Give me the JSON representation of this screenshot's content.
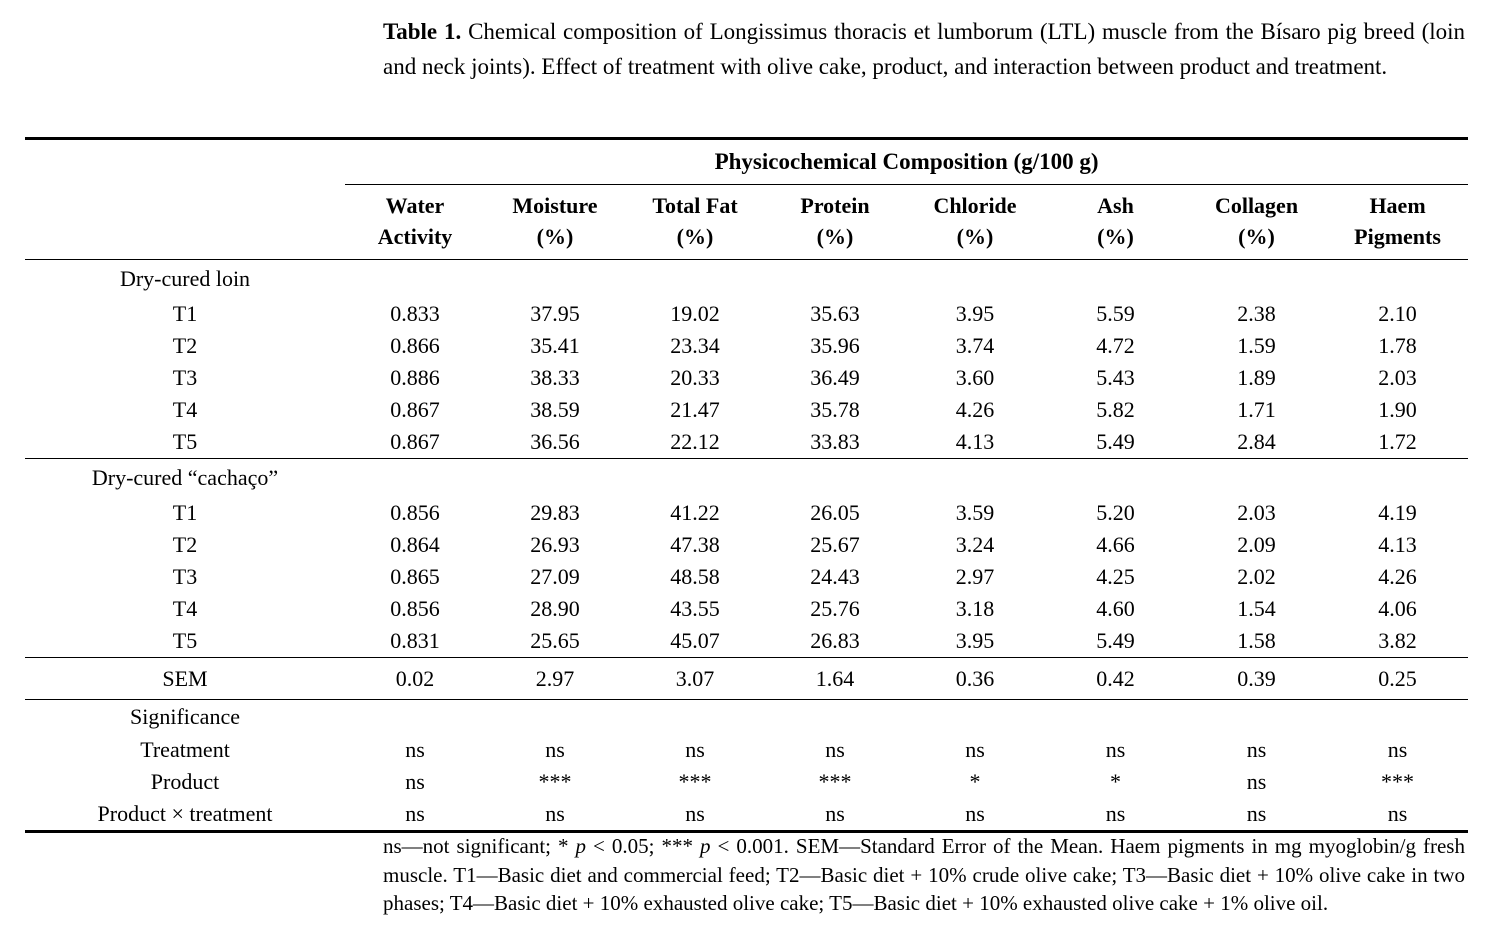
{
  "caption": {
    "label": "Table 1.",
    "text": "Chemical composition of Longissimus thoracis et lumborum (LTL) muscle from the Bísaro pig breed (loin and neck joints). Effect of treatment with olive cake, product, and interaction between product and treatment."
  },
  "table": {
    "group_header": "Physicochemical Composition (g/100 g)",
    "columns": [
      [
        "Water",
        "Activity"
      ],
      [
        "Moisture",
        "(%)"
      ],
      [
        "Total Fat",
        "(%)"
      ],
      [
        "Protein",
        "(%)"
      ],
      [
        "Chloride",
        "(%)"
      ],
      [
        "Ash",
        "(%)"
      ],
      [
        "Collagen",
        "(%)"
      ],
      [
        "Haem",
        "Pigments"
      ]
    ],
    "sections": [
      {
        "label": "Dry-cured loin",
        "rows": [
          {
            "label": "T1",
            "values": [
              "0.833",
              "37.95",
              "19.02",
              "35.63",
              "3.95",
              "5.59",
              "2.38",
              "2.10"
            ]
          },
          {
            "label": "T2",
            "values": [
              "0.866",
              "35.41",
              "23.34",
              "35.96",
              "3.74",
              "4.72",
              "1.59",
              "1.78"
            ]
          },
          {
            "label": "T3",
            "values": [
              "0.886",
              "38.33",
              "20.33",
              "36.49",
              "3.60",
              "5.43",
              "1.89",
              "2.03"
            ]
          },
          {
            "label": "T4",
            "values": [
              "0.867",
              "38.59",
              "21.47",
              "35.78",
              "4.26",
              "5.82",
              "1.71",
              "1.90"
            ]
          },
          {
            "label": "T5",
            "values": [
              "0.867",
              "36.56",
              "22.12",
              "33.83",
              "4.13",
              "5.49",
              "2.84",
              "1.72"
            ]
          }
        ]
      },
      {
        "label": "Dry-cured “cachaço”",
        "rows": [
          {
            "label": "T1",
            "values": [
              "0.856",
              "29.83",
              "41.22",
              "26.05",
              "3.59",
              "5.20",
              "2.03",
              "4.19"
            ]
          },
          {
            "label": "T2",
            "values": [
              "0.864",
              "26.93",
              "47.38",
              "25.67",
              "3.24",
              "4.66",
              "2.09",
              "4.13"
            ]
          },
          {
            "label": "T3",
            "values": [
              "0.865",
              "27.09",
              "48.58",
              "24.43",
              "2.97",
              "4.25",
              "2.02",
              "4.26"
            ]
          },
          {
            "label": "T4",
            "values": [
              "0.856",
              "28.90",
              "43.55",
              "25.76",
              "3.18",
              "4.60",
              "1.54",
              "4.06"
            ]
          },
          {
            "label": "T5",
            "values": [
              "0.831",
              "25.65",
              "45.07",
              "26.83",
              "3.95",
              "5.49",
              "1.58",
              "3.82"
            ]
          }
        ]
      }
    ],
    "sem": {
      "label": "SEM",
      "values": [
        "0.02",
        "2.97",
        "3.07",
        "1.64",
        "0.36",
        "0.42",
        "0.39",
        "0.25"
      ]
    },
    "significance": {
      "label": "Significance",
      "rows": [
        {
          "label": "Treatment",
          "values": [
            "ns",
            "ns",
            "ns",
            "ns",
            "ns",
            "ns",
            "ns",
            "ns"
          ]
        },
        {
          "label": "Product",
          "values": [
            "ns",
            "***",
            "***",
            "***",
            "*",
            "*",
            "ns",
            "***"
          ]
        },
        {
          "label": "Product × treatment",
          "values": [
            "ns",
            "ns",
            "ns",
            "ns",
            "ns",
            "ns",
            "ns",
            "ns"
          ]
        }
      ]
    }
  },
  "footnote": {
    "segments": [
      {
        "text": "ns—not significant; * "
      },
      {
        "text": "p",
        "italic": true
      },
      {
        "text": " < 0.05; *** "
      },
      {
        "text": "p",
        "italic": true
      },
      {
        "text": " < 0.001. SEM—Standard Error of the Mean. Haem pigments in mg myoglobin/g fresh muscle. T1—Basic diet and commercial feed; T2—Basic diet + 10% crude olive cake; T3—Basic diet + 10% olive cake in two phases; T4—Basic diet + 10% exhausted olive cake; T5—Basic diet + 10% exhausted olive cake + 1% olive oil."
      }
    ]
  },
  "colors": {
    "text": "#000000",
    "background": "#ffffff",
    "rule": "#000000"
  }
}
